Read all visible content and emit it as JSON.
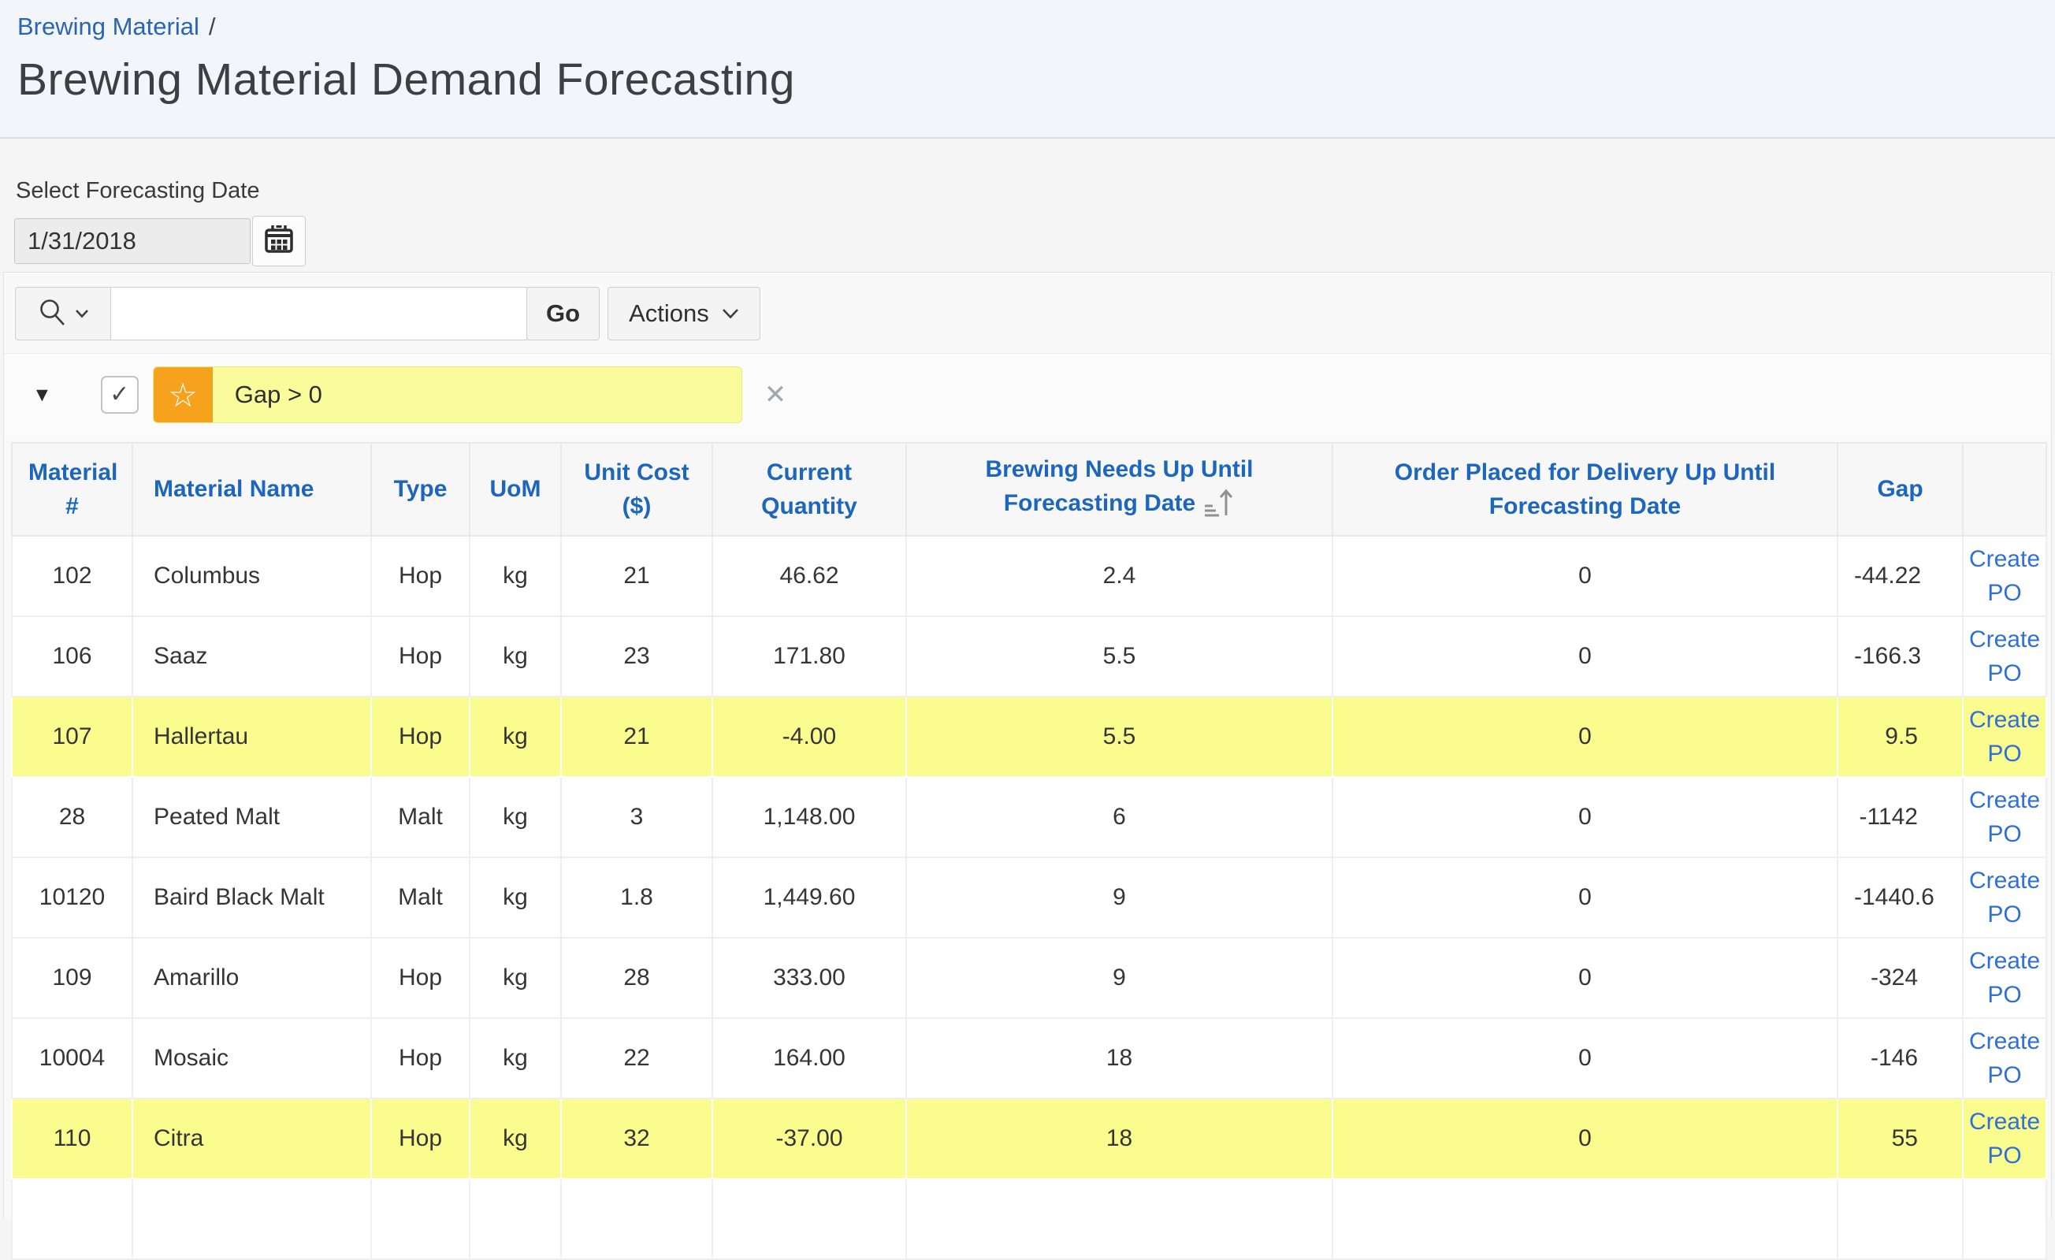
{
  "breadcrumb": {
    "link": "Brewing Material",
    "separator": "/"
  },
  "title": "Brewing Material Demand Forecasting",
  "forecast": {
    "label": "Select Forecasting Date",
    "value": "1/31/2018"
  },
  "toolbar": {
    "search_value": "",
    "search_placeholder": "",
    "go_label": "Go",
    "actions_label": "Actions"
  },
  "filter": {
    "chip_label": "Gap > 0",
    "checked": true,
    "checkmark": "✓",
    "expand_glyph": "▼",
    "star_glyph": "☆",
    "close_glyph": "✕"
  },
  "colors": {
    "header_background": "#f2f5f9",
    "link_blue": "#2a64b2",
    "column_header_blue": "#1d66bd",
    "create_po_blue": "#2e6fd8",
    "highlight_row_yellow": "#fbfc8e",
    "chip_yellow": "#fafc9b",
    "star_orange": "#f7a21c"
  },
  "table": {
    "columns": [
      {
        "label": "Material #"
      },
      {
        "label": "Material Name"
      },
      {
        "label": "Type"
      },
      {
        "label": "UoM"
      },
      {
        "label": "Unit Cost ($)"
      },
      {
        "label": "Current Quantity"
      },
      {
        "label": "Brewing Needs Up Until Forecasting Date"
      },
      {
        "label": "Order Placed for Delivery Up Until Forecasting Date"
      },
      {
        "label": "Gap"
      },
      {
        "label": ""
      }
    ],
    "create_po_label": "Create PO",
    "rows": [
      {
        "material_no": "102",
        "name": "Columbus",
        "type": "Hop",
        "uom": "kg",
        "unit_cost": "21",
        "current_qty": "46.62",
        "brewing_needs": "2.4",
        "order_placed": "0",
        "gap": "-44.22",
        "highlight": false
      },
      {
        "material_no": "106",
        "name": "Saaz",
        "type": "Hop",
        "uom": "kg",
        "unit_cost": "23",
        "current_qty": "171.80",
        "brewing_needs": "5.5",
        "order_placed": "0",
        "gap": "-166.3",
        "highlight": false
      },
      {
        "material_no": "107",
        "name": "Hallertau",
        "type": "Hop",
        "uom": "kg",
        "unit_cost": "21",
        "current_qty": "-4.00",
        "brewing_needs": "5.5",
        "order_placed": "0",
        "gap": "9.5",
        "highlight": true
      },
      {
        "material_no": "28",
        "name": "Peated Malt",
        "type": "Malt",
        "uom": "kg",
        "unit_cost": "3",
        "current_qty": "1,148.00",
        "brewing_needs": "6",
        "order_placed": "0",
        "gap": "-1142",
        "highlight": false
      },
      {
        "material_no": "10120",
        "name": "Baird Black Malt",
        "type": "Malt",
        "uom": "kg",
        "unit_cost": "1.8",
        "current_qty": "1,449.60",
        "brewing_needs": "9",
        "order_placed": "0",
        "gap": "-1440.6",
        "highlight": false
      },
      {
        "material_no": "109",
        "name": "Amarillo",
        "type": "Hop",
        "uom": "kg",
        "unit_cost": "28",
        "current_qty": "333.00",
        "brewing_needs": "9",
        "order_placed": "0",
        "gap": "-324",
        "highlight": false
      },
      {
        "material_no": "10004",
        "name": "Mosaic",
        "type": "Hop",
        "uom": "kg",
        "unit_cost": "22",
        "current_qty": "164.00",
        "brewing_needs": "18",
        "order_placed": "0",
        "gap": "-146",
        "highlight": false
      },
      {
        "material_no": "110",
        "name": "Citra",
        "type": "Hop",
        "uom": "kg",
        "unit_cost": "32",
        "current_qty": "-37.00",
        "brewing_needs": "18",
        "order_placed": "0",
        "gap": "55",
        "highlight": true
      }
    ]
  }
}
